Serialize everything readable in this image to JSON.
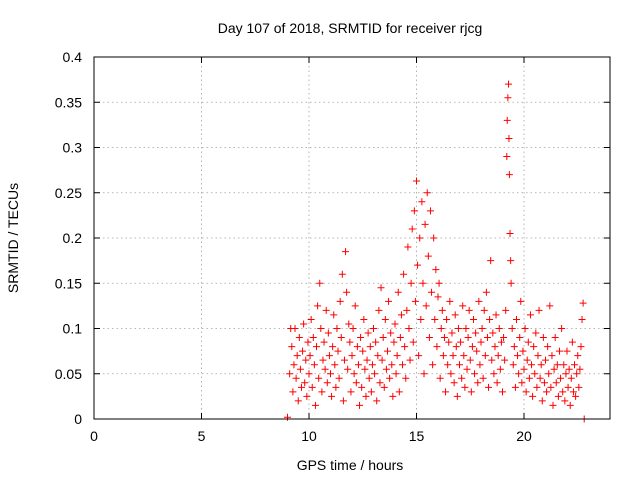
{
  "chart_data": {
    "type": "scatter",
    "title": "Day 107 of 2018, SRMTID for receiver rjcg",
    "xlabel": "GPS time / hours",
    "ylabel": "SRMTID / TECUs",
    "xlim": [
      0,
      24
    ],
    "ylim": [
      0,
      0.4
    ],
    "x_ticks": [
      0,
      5,
      10,
      15,
      20
    ],
    "x_tick_labels": [
      "0",
      "5",
      "10",
      "15",
      "20"
    ],
    "y_ticks": [
      0,
      0.05,
      0.1,
      0.15,
      0.2,
      0.25,
      0.3,
      0.35,
      0.4
    ],
    "y_tick_labels": [
      "0",
      "0.05",
      "0.1",
      "0.15",
      "0.2",
      "0.25",
      "0.3",
      "0.35",
      "0.4"
    ],
    "grid": true,
    "marker": "+",
    "color": "#ff0000",
    "series": [
      {
        "name": "SRMTID",
        "points": [
          [
            9.0,
            0.002
          ],
          [
            9.1,
            0.05
          ],
          [
            9.15,
            0.1
          ],
          [
            9.2,
            0.08
          ],
          [
            9.25,
            0.03
          ],
          [
            9.3,
            0.06
          ],
          [
            9.35,
            0.1
          ],
          [
            9.4,
            0.045
          ],
          [
            9.45,
            0.07
          ],
          [
            9.5,
            0.02
          ],
          [
            9.55,
            0.09
          ],
          [
            9.6,
            0.055
          ],
          [
            9.65,
            0.035
          ],
          [
            9.7,
            0.075
          ],
          [
            9.75,
            0.105
          ],
          [
            9.8,
            0.04
          ],
          [
            9.85,
            0.065
          ],
          [
            9.9,
            0.025
          ],
          [
            9.95,
            0.085
          ],
          [
            10.0,
            0.05
          ],
          [
            10.05,
            0.07
          ],
          [
            10.1,
            0.11
          ],
          [
            10.15,
            0.035
          ],
          [
            10.2,
            0.09
          ],
          [
            10.25,
            0.06
          ],
          [
            10.3,
            0.015
          ],
          [
            10.35,
            0.08
          ],
          [
            10.4,
            0.125
          ],
          [
            10.45,
            0.045
          ],
          [
            10.5,
            0.15
          ],
          [
            10.55,
            0.1
          ],
          [
            10.6,
            0.03
          ],
          [
            10.65,
            0.065
          ],
          [
            10.7,
            0.085
          ],
          [
            10.75,
            0.055
          ],
          [
            10.8,
            0.12
          ],
          [
            10.85,
            0.04
          ],
          [
            10.9,
            0.095
          ],
          [
            10.95,
            0.07
          ],
          [
            11.0,
            0.05
          ],
          [
            11.05,
            0.025
          ],
          [
            11.1,
            0.08
          ],
          [
            11.15,
            0.115
          ],
          [
            11.2,
            0.06
          ],
          [
            11.25,
            0.035
          ],
          [
            11.3,
            0.1
          ],
          [
            11.35,
            0.075
          ],
          [
            11.4,
            0.045
          ],
          [
            11.45,
            0.13
          ],
          [
            11.5,
            0.09
          ],
          [
            11.55,
            0.16
          ],
          [
            11.6,
            0.02
          ],
          [
            11.65,
            0.065
          ],
          [
            11.7,
            0.185
          ],
          [
            11.75,
            0.14
          ],
          [
            11.8,
            0.055
          ],
          [
            11.85,
            0.105
          ],
          [
            11.9,
            0.085
          ],
          [
            11.95,
            0.03
          ],
          [
            12.0,
            0.07
          ],
          [
            12.05,
            0.1
          ],
          [
            12.1,
            0.05
          ],
          [
            12.15,
            0.125
          ],
          [
            12.2,
            0.04
          ],
          [
            12.25,
            0.08
          ],
          [
            12.3,
            0.06
          ],
          [
            12.35,
            0.015
          ],
          [
            12.4,
            0.09
          ],
          [
            12.45,
            0.035
          ],
          [
            12.5,
            0.075
          ],
          [
            12.55,
            0.11
          ],
          [
            12.6,
            0.055
          ],
          [
            12.65,
            0.025
          ],
          [
            12.7,
            0.065
          ],
          [
            12.75,
            0.095
          ],
          [
            12.8,
            0.045
          ],
          [
            12.85,
            0.08
          ],
          [
            12.9,
            0.03
          ],
          [
            12.95,
            0.06
          ],
          [
            13.0,
            0.1
          ],
          [
            13.05,
            0.05
          ],
          [
            13.1,
            0.085
          ],
          [
            13.15,
            0.02
          ],
          [
            13.2,
            0.07
          ],
          [
            13.25,
            0.12
          ],
          [
            13.3,
            0.04
          ],
          [
            13.35,
            0.145
          ],
          [
            13.4,
            0.065
          ],
          [
            13.45,
            0.09
          ],
          [
            13.5,
            0.035
          ],
          [
            13.55,
            0.11
          ],
          [
            13.6,
            0.055
          ],
          [
            13.65,
            0.075
          ],
          [
            13.7,
            0.13
          ],
          [
            13.75,
            0.045
          ],
          [
            13.8,
            0.095
          ],
          [
            13.85,
            0.06
          ],
          [
            13.9,
            0.025
          ],
          [
            13.95,
            0.085
          ],
          [
            14.0,
            0.105
          ],
          [
            14.05,
            0.05
          ],
          [
            14.1,
            0.07
          ],
          [
            14.15,
            0.14
          ],
          [
            14.2,
            0.03
          ],
          [
            14.25,
            0.09
          ],
          [
            14.3,
            0.115
          ],
          [
            14.35,
            0.06
          ],
          [
            14.4,
            0.16
          ],
          [
            14.45,
            0.08
          ],
          [
            14.5,
            0.045
          ],
          [
            14.55,
            0.12
          ],
          [
            14.6,
            0.19
          ],
          [
            14.65,
            0.1
          ],
          [
            14.7,
            0.065
          ],
          [
            14.75,
            0.15
          ],
          [
            14.8,
            0.21
          ],
          [
            14.85,
            0.085
          ],
          [
            14.9,
            0.23
          ],
          [
            14.95,
            0.13
          ],
          [
            15.0,
            0.263
          ],
          [
            15.05,
            0.17
          ],
          [
            15.1,
            0.07
          ],
          [
            15.15,
            0.2
          ],
          [
            15.2,
            0.11
          ],
          [
            15.25,
            0.24
          ],
          [
            15.3,
            0.15
          ],
          [
            15.35,
            0.05
          ],
          [
            15.4,
            0.215
          ],
          [
            15.45,
            0.125
          ],
          [
            15.5,
            0.25
          ],
          [
            15.55,
            0.18
          ],
          [
            15.6,
            0.09
          ],
          [
            15.65,
            0.23
          ],
          [
            15.7,
            0.14
          ],
          [
            15.75,
            0.06
          ],
          [
            15.8,
            0.2
          ],
          [
            15.85,
            0.11
          ],
          [
            15.9,
            0.165
          ],
          [
            15.95,
            0.08
          ],
          [
            16.0,
            0.135
          ],
          [
            16.05,
            0.15
          ],
          [
            16.1,
            0.045
          ],
          [
            16.15,
            0.1
          ],
          [
            16.2,
            0.12
          ],
          [
            16.25,
            0.07
          ],
          [
            16.3,
            0.09
          ],
          [
            16.35,
            0.03
          ],
          [
            16.4,
            0.11
          ],
          [
            16.45,
            0.06
          ],
          [
            16.5,
            0.085
          ],
          [
            16.55,
            0.13
          ],
          [
            16.6,
            0.05
          ],
          [
            16.65,
            0.095
          ],
          [
            16.7,
            0.07
          ],
          [
            16.75,
            0.04
          ],
          [
            16.8,
            0.115
          ],
          [
            16.85,
            0.08
          ],
          [
            16.9,
            0.025
          ],
          [
            16.95,
            0.1
          ],
          [
            17.0,
            0.06
          ],
          [
            17.05,
            0.085
          ],
          [
            17.1,
            0.045
          ],
          [
            17.15,
            0.125
          ],
          [
            17.2,
            0.07
          ],
          [
            17.25,
            0.035
          ],
          [
            17.3,
            0.1
          ],
          [
            17.35,
            0.055
          ],
          [
            17.4,
            0.09
          ],
          [
            17.45,
            0.12
          ],
          [
            17.5,
            0.065
          ],
          [
            17.55,
            0.03
          ],
          [
            17.6,
            0.08
          ],
          [
            17.65,
            0.11
          ],
          [
            17.7,
            0.05
          ],
          [
            17.75,
            0.095
          ],
          [
            17.8,
            0.075
          ],
          [
            17.85,
            0.04
          ],
          [
            17.9,
            0.13
          ],
          [
            17.95,
            0.06
          ],
          [
            18.0,
            0.085
          ],
          [
            18.05,
            0.1
          ],
          [
            18.1,
            0.045
          ],
          [
            18.15,
            0.12
          ],
          [
            18.2,
            0.07
          ],
          [
            18.25,
            0.14
          ],
          [
            18.3,
            0.09
          ],
          [
            18.35,
            0.035
          ],
          [
            18.4,
            0.11
          ],
          [
            18.45,
            0.175
          ],
          [
            18.5,
            0.065
          ],
          [
            18.55,
            0.095
          ],
          [
            18.6,
            0.05
          ],
          [
            18.65,
            0.08
          ],
          [
            18.7,
            0.115
          ],
          [
            18.75,
            0.04
          ],
          [
            18.8,
            0.07
          ],
          [
            18.85,
            0.1
          ],
          [
            18.9,
            0.055
          ],
          [
            18.95,
            0.085
          ],
          [
            19.0,
            0.03
          ],
          [
            19.05,
            0.09
          ],
          [
            19.1,
            0.065
          ],
          [
            19.15,
            0.12
          ],
          [
            19.2,
            0.29
          ],
          [
            19.22,
            0.33
          ],
          [
            19.25,
            0.355
          ],
          [
            19.28,
            0.37
          ],
          [
            19.3,
            0.31
          ],
          [
            19.32,
            0.27
          ],
          [
            19.35,
            0.205
          ],
          [
            19.38,
            0.175
          ],
          [
            19.4,
            0.15
          ],
          [
            19.45,
            0.1
          ],
          [
            19.5,
            0.06
          ],
          [
            19.55,
            0.08
          ],
          [
            19.6,
            0.035
          ],
          [
            19.65,
            0.11
          ],
          [
            19.7,
            0.07
          ],
          [
            19.75,
            0.05
          ],
          [
            19.8,
            0.09
          ],
          [
            19.85,
            0.13
          ],
          [
            19.9,
            0.04
          ],
          [
            19.95,
            0.075
          ],
          [
            20.0,
            0.055
          ],
          [
            20.05,
            0.1
          ],
          [
            20.1,
            0.03
          ],
          [
            20.15,
            0.065
          ],
          [
            20.2,
            0.085
          ],
          [
            20.25,
            0.045
          ],
          [
            20.3,
            0.115
          ],
          [
            20.35,
            0.06
          ],
          [
            20.4,
            0.025
          ],
          [
            20.45,
            0.08
          ],
          [
            20.5,
            0.05
          ],
          [
            20.55,
            0.095
          ],
          [
            20.6,
            0.035
          ],
          [
            20.65,
            0.07
          ],
          [
            20.7,
            0.12
          ],
          [
            20.75,
            0.045
          ],
          [
            20.8,
            0.06
          ],
          [
            20.85,
            0.02
          ],
          [
            20.9,
            0.09
          ],
          [
            20.95,
            0.04
          ],
          [
            21.0,
            0.065
          ],
          [
            21.05,
            0.03
          ],
          [
            21.1,
            0.08
          ],
          [
            21.15,
            0.05
          ],
          [
            21.2,
            0.125
          ],
          [
            21.25,
            0.035
          ],
          [
            21.3,
            0.07
          ],
          [
            21.35,
            0.015
          ],
          [
            21.4,
            0.055
          ],
          [
            21.45,
            0.09
          ],
          [
            21.5,
            0.04
          ],
          [
            21.55,
            0.06
          ],
          [
            21.6,
            0.025
          ],
          [
            21.65,
            0.075
          ],
          [
            21.7,
            0.045
          ],
          [
            21.75,
            0.1
          ],
          [
            21.8,
            0.03
          ],
          [
            21.85,
            0.06
          ],
          [
            21.9,
            0.02
          ],
          [
            21.95,
            0.05
          ],
          [
            22.0,
            0.075
          ],
          [
            22.05,
            0.035
          ],
          [
            22.1,
            0.055
          ],
          [
            22.15,
            0.015
          ],
          [
            22.2,
            0.045
          ],
          [
            22.25,
            0.085
          ],
          [
            22.3,
            0.03
          ],
          [
            22.35,
            0.06
          ],
          [
            22.4,
            0.025
          ],
          [
            22.45,
            0.05
          ],
          [
            22.5,
            0.07
          ],
          [
            22.55,
            0.035
          ],
          [
            22.6,
            0.055
          ],
          [
            22.65,
            0.08
          ],
          [
            22.7,
            0.11
          ],
          [
            22.75,
            0.128
          ],
          [
            22.8,
            0.0
          ]
        ]
      }
    ]
  }
}
